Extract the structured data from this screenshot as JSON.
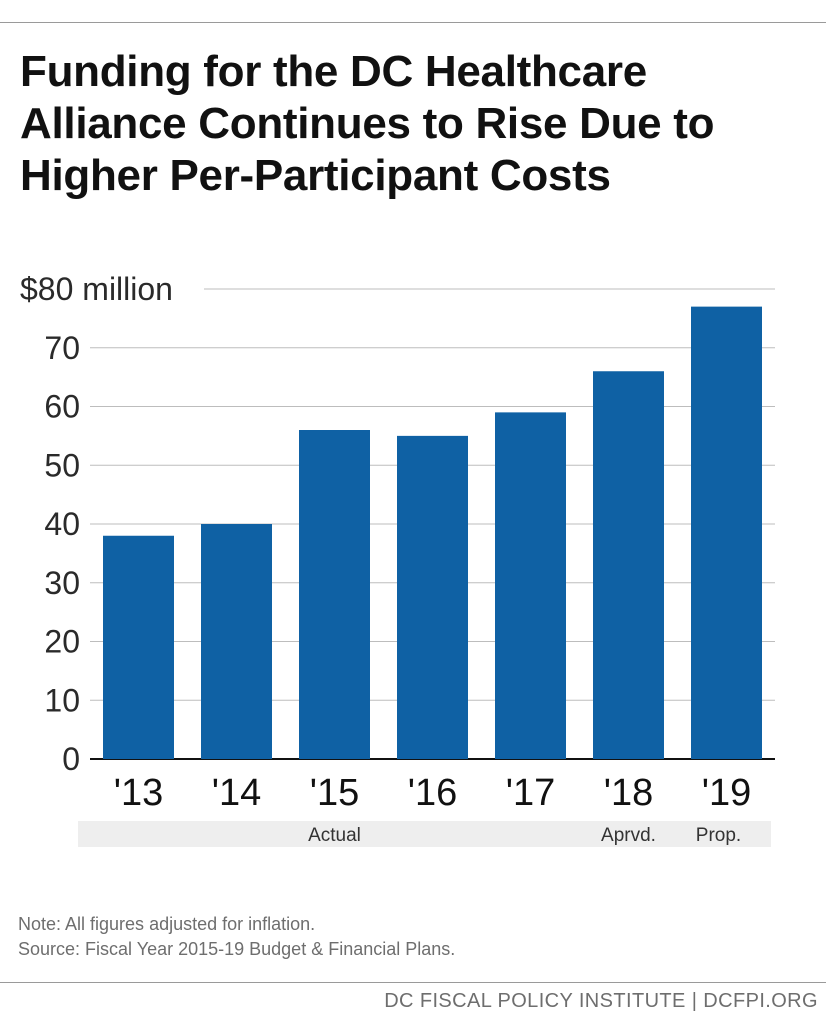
{
  "title": "Funding for the DC Healthcare\nAlliance Continues to Rise Due to\nHigher Per-Participant Costs",
  "notes": {
    "note": "Note: All figures adjusted for inflation.",
    "source": "Source: Fiscal Year 2015-19 Budget & Financial Plans."
  },
  "footer": "DC FISCAL POLICY INSTITUTE | DCFPI.ORG",
  "colors": {
    "bar": "#0f61a4",
    "grid": "#bdbdbd",
    "band": "#eeeeee"
  },
  "chart_data": {
    "type": "bar",
    "title": "Funding for the DC Healthcare Alliance Continues to Rise Due to Higher Per-Participant Costs",
    "categories": [
      "'13",
      "'14",
      "'15",
      "'16",
      "'17",
      "'18",
      "'19"
    ],
    "values": [
      38,
      40,
      56,
      55,
      59,
      66,
      77
    ],
    "ylim": [
      0,
      80
    ],
    "yticks": [
      0,
      10,
      20,
      30,
      40,
      50,
      60,
      70,
      80
    ],
    "ytick_labels": [
      "0",
      "10",
      "20",
      "30",
      "40",
      "50",
      "60",
      "70",
      "$80 million"
    ],
    "grid": true,
    "legend": "none",
    "groups": [
      {
        "label": "Actual",
        "from": 0,
        "to": 4
      },
      {
        "label": "Aprvd.",
        "from": 5,
        "to": 5
      },
      {
        "label": "Prop.",
        "from": 6,
        "to": 6
      }
    ]
  }
}
